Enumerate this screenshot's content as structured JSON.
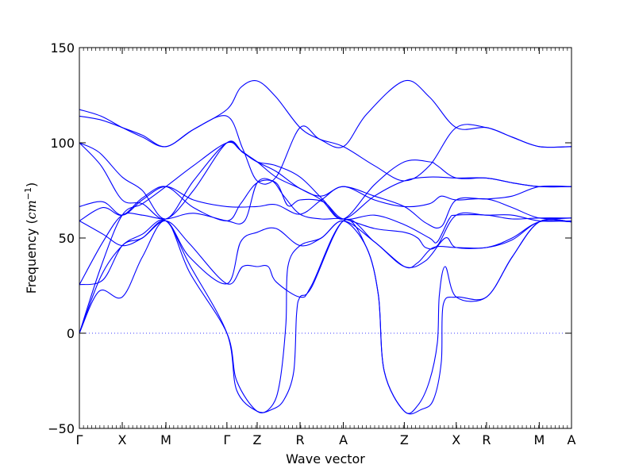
{
  "chart_data": {
    "type": "line",
    "title": "",
    "xlabel": "Wave vector",
    "ylabel": {
      "prefix": "Frequency (",
      "unit": "cm",
      "exp": "−1",
      "suffix": ")"
    },
    "ylim": [
      -50,
      150
    ],
    "yticks": [
      -50,
      0,
      50,
      100,
      150
    ],
    "ytick_labels": [
      "−50",
      "0",
      "50",
      "100",
      "150"
    ],
    "xlim": [
      0,
      12.51
    ],
    "xticks": [
      {
        "label": "Γ",
        "pos": 0
      },
      {
        "label": "X",
        "pos": 1.09
      },
      {
        "label": "M",
        "pos": 2.2
      },
      {
        "label": "Γ",
        "pos": 3.75
      },
      {
        "label": "Z",
        "pos": 4.52
      },
      {
        "label": "R",
        "pos": 5.61
      },
      {
        "label": "A",
        "pos": 6.71
      },
      {
        "label": "Z",
        "pos": 8.26
      },
      {
        "label": "X",
        "pos": 9.58
      },
      {
        "label": "R",
        "pos": 10.35
      },
      {
        "label": "M",
        "pos": 11.69
      },
      {
        "label": "A",
        "pos": 12.51
      }
    ],
    "zero_line": true,
    "line_color": "#0000ff",
    "grid": false,
    "series": [
      {
        "values": [
          [
            0,
            117.5
          ],
          [
            0.55,
            114
          ],
          [
            1.09,
            108
          ],
          [
            1.6,
            103
          ],
          [
            2.2,
            98
          ],
          [
            2.9,
            107
          ],
          [
            3.75,
            117.5
          ],
          [
            4.1,
            129
          ],
          [
            4.52,
            132.5
          ],
          [
            5.0,
            124
          ],
          [
            5.61,
            108
          ],
          [
            6.1,
            102
          ],
          [
            6.71,
            98
          ],
          [
            7.3,
            115
          ],
          [
            8.26,
            132.5
          ],
          [
            8.9,
            124
          ],
          [
            9.58,
            108
          ],
          [
            10.35,
            108
          ],
          [
            11.0,
            103
          ],
          [
            11.69,
            98
          ],
          [
            12.51,
            98
          ]
        ]
      },
      {
        "values": [
          [
            0,
            114
          ],
          [
            0.55,
            112
          ],
          [
            1.09,
            108
          ],
          [
            1.6,
            104
          ],
          [
            2.2,
            98
          ],
          [
            2.9,
            107
          ],
          [
            3.75,
            114
          ],
          [
            4.15,
            97
          ],
          [
            4.52,
            80
          ],
          [
            5.0,
            82
          ],
          [
            5.61,
            108
          ],
          [
            6.1,
            102
          ],
          [
            6.71,
            98
          ],
          [
            7.5,
            88
          ],
          [
            8.26,
            80
          ],
          [
            8.9,
            88
          ],
          [
            9.58,
            108
          ],
          [
            10.35,
            108
          ],
          [
            11.0,
            103
          ],
          [
            11.69,
            98
          ],
          [
            12.51,
            98
          ]
        ]
      },
      {
        "values": [
          [
            0,
            100
          ],
          [
            0.5,
            95
          ],
          [
            1.09,
            82
          ],
          [
            1.6,
            75
          ],
          [
            2.2,
            60
          ],
          [
            2.9,
            80
          ],
          [
            3.75,
            100
          ],
          [
            4.15,
            95
          ],
          [
            4.52,
            90
          ],
          [
            5.0,
            88
          ],
          [
            5.61,
            82
          ],
          [
            6.2,
            70
          ],
          [
            6.71,
            60
          ],
          [
            7.5,
            72
          ],
          [
            8.26,
            80
          ],
          [
            8.9,
            82
          ],
          [
            9.58,
            81.5
          ],
          [
            10.35,
            81.5
          ],
          [
            11.0,
            79
          ],
          [
            11.69,
            77
          ],
          [
            12.51,
            77
          ]
        ]
      },
      {
        "values": [
          [
            0,
            100
          ],
          [
            0.55,
            88
          ],
          [
            1.09,
            70
          ],
          [
            1.6,
            68
          ],
          [
            2.2,
            60
          ],
          [
            2.9,
            75
          ],
          [
            3.75,
            100
          ],
          [
            4.15,
            95
          ],
          [
            4.52,
            90
          ],
          [
            5.0,
            82
          ],
          [
            5.61,
            76
          ],
          [
            6.15,
            70
          ],
          [
            6.71,
            60
          ],
          [
            7.5,
            78
          ],
          [
            8.26,
            90
          ],
          [
            8.9,
            90
          ],
          [
            9.1,
            88
          ],
          [
            9.58,
            81.5
          ],
          [
            10.35,
            81.5
          ],
          [
            11.0,
            79
          ],
          [
            11.69,
            77
          ],
          [
            12.51,
            77
          ]
        ]
      },
      {
        "values": [
          [
            0,
            66.5
          ],
          [
            0.6,
            69
          ],
          [
            1.09,
            62
          ],
          [
            1.6,
            70
          ],
          [
            2.2,
            77
          ],
          [
            2.9,
            70
          ],
          [
            3.75,
            66.5
          ],
          [
            4.5,
            66.5
          ],
          [
            5.0,
            67.5
          ],
          [
            5.61,
            62.5
          ],
          [
            6.15,
            70
          ],
          [
            6.71,
            77
          ],
          [
            7.5,
            70
          ],
          [
            8.26,
            66.5
          ],
          [
            8.9,
            68
          ],
          [
            9.2,
            72
          ],
          [
            9.58,
            70
          ],
          [
            10.35,
            70.5
          ],
          [
            11.0,
            66
          ],
          [
            11.69,
            60.5
          ],
          [
            12.51,
            60.5
          ]
        ]
      },
      {
        "values": [
          [
            0,
            59
          ],
          [
            0.6,
            66
          ],
          [
            1.09,
            62
          ],
          [
            1.6,
            71
          ],
          [
            2.2,
            77
          ],
          [
            2.9,
            66
          ],
          [
            3.75,
            59
          ],
          [
            4.1,
            68
          ],
          [
            4.52,
            79
          ],
          [
            5.0,
            79
          ],
          [
            5.3,
            67
          ],
          [
            5.61,
            70
          ],
          [
            6.2,
            69
          ],
          [
            6.71,
            60
          ],
          [
            7.5,
            62
          ],
          [
            8.26,
            57
          ],
          [
            8.9,
            50
          ],
          [
            9.1,
            48
          ],
          [
            9.4,
            60
          ],
          [
            9.58,
            62
          ],
          [
            10.35,
            62
          ],
          [
            11.0,
            60
          ],
          [
            11.69,
            60.5
          ],
          [
            12.51,
            60.5
          ]
        ]
      },
      {
        "values": [
          [
            0,
            25.5
          ],
          [
            0.6,
            48
          ],
          [
            1.09,
            62
          ],
          [
            1.6,
            62
          ],
          [
            2.2,
            60
          ],
          [
            2.9,
            63
          ],
          [
            3.75,
            59
          ],
          [
            4.2,
            59
          ],
          [
            4.52,
            79
          ],
          [
            4.9,
            80
          ],
          [
            5.2,
            72
          ],
          [
            5.61,
            62.5
          ],
          [
            6.15,
            60
          ],
          [
            6.71,
            60
          ],
          [
            7.5,
            55
          ],
          [
            8.26,
            53
          ],
          [
            8.6,
            50
          ],
          [
            8.8,
            45
          ],
          [
            9.1,
            46
          ],
          [
            9.58,
            62
          ],
          [
            10.35,
            62
          ],
          [
            11.0,
            62
          ],
          [
            11.69,
            59
          ],
          [
            12.51,
            59
          ]
        ]
      },
      {
        "values": [
          [
            0,
            59
          ],
          [
            0.6,
            52
          ],
          [
            1.09,
            46
          ],
          [
            1.6,
            50
          ],
          [
            2.2,
            59
          ],
          [
            2.8,
            47
          ],
          [
            3.75,
            26
          ],
          [
            4.15,
            35
          ],
          [
            4.52,
            35
          ],
          [
            4.8,
            35
          ],
          [
            5.0,
            27
          ],
          [
            5.61,
            19
          ],
          [
            5.9,
            25
          ],
          [
            6.71,
            59
          ],
          [
            7.5,
            48
          ],
          [
            8.26,
            35
          ],
          [
            8.8,
            38
          ],
          [
            9.3,
            50
          ],
          [
            9.58,
            45
          ],
          [
            10.35,
            45
          ],
          [
            11.0,
            49
          ],
          [
            11.69,
            58.5
          ],
          [
            12.51,
            58.5
          ]
        ]
      },
      {
        "values": [
          [
            0,
            25.5
          ],
          [
            0.6,
            28
          ],
          [
            1.09,
            46
          ],
          [
            1.6,
            50
          ],
          [
            2.2,
            59
          ],
          [
            2.8,
            40
          ],
          [
            3.75,
            26
          ],
          [
            4.1,
            48
          ],
          [
            4.52,
            53
          ],
          [
            5.0,
            55
          ],
          [
            5.61,
            46
          ],
          [
            6.15,
            50
          ],
          [
            6.71,
            59
          ],
          [
            7.5,
            48
          ],
          [
            8.26,
            35
          ],
          [
            8.6,
            37
          ],
          [
            9.0,
            45
          ],
          [
            9.58,
            45
          ],
          [
            10.35,
            45
          ],
          [
            11.0,
            50
          ],
          [
            11.69,
            58.5
          ],
          [
            12.51,
            58.5
          ]
        ]
      },
      {
        "values": [
          [
            0,
            0
          ],
          [
            0.5,
            22
          ],
          [
            1.09,
            19
          ],
          [
            1.6,
            40
          ],
          [
            2.2,
            59
          ],
          [
            2.8,
            32
          ],
          [
            3.75,
            0
          ],
          [
            4.0,
            -25
          ],
          [
            4.52,
            -41
          ],
          [
            4.9,
            -38
          ],
          [
            5.1,
            -25
          ],
          [
            5.25,
            5
          ],
          [
            5.3,
            35
          ],
          [
            5.61,
            46
          ],
          [
            6.15,
            50
          ],
          [
            6.71,
            59
          ],
          [
            7.3,
            45
          ],
          [
            7.6,
            20
          ],
          [
            7.75,
            -20
          ],
          [
            8.26,
            -41
          ],
          [
            8.6,
            -38
          ],
          [
            8.9,
            -25
          ],
          [
            9.1,
            -5
          ],
          [
            9.15,
            20
          ],
          [
            9.3,
            35
          ],
          [
            9.58,
            19
          ],
          [
            10.35,
            19
          ],
          [
            11.0,
            40
          ],
          [
            11.69,
            58.5
          ],
          [
            12.51,
            58.5
          ]
        ]
      },
      {
        "values": [
          [
            0,
            0
          ],
          [
            0.55,
            30
          ],
          [
            1.09,
            46
          ],
          [
            1.6,
            52
          ],
          [
            2.2,
            59
          ],
          [
            2.8,
            36
          ],
          [
            3.75,
            0
          ],
          [
            4.0,
            -30
          ],
          [
            4.52,
            -41
          ],
          [
            4.9,
            -40
          ],
          [
            5.2,
            -35
          ],
          [
            5.45,
            -20
          ],
          [
            5.52,
            10
          ],
          [
            5.61,
            19
          ],
          [
            5.9,
            24
          ],
          [
            6.71,
            59
          ],
          [
            7.3,
            45
          ],
          [
            7.6,
            20
          ],
          [
            7.75,
            -20
          ],
          [
            8.26,
            -41
          ],
          [
            8.7,
            -40
          ],
          [
            9.0,
            -35
          ],
          [
            9.2,
            -15
          ],
          [
            9.25,
            15
          ],
          [
            9.58,
            19
          ],
          [
            10.35,
            19
          ],
          [
            11.0,
            40
          ],
          [
            11.69,
            58.5
          ],
          [
            12.51,
            58.5
          ]
        ]
      },
      {
        "values": [
          [
            0,
            0
          ],
          [
            0.55,
            35
          ],
          [
            1.09,
            62
          ],
          [
            1.6,
            68
          ],
          [
            2.2,
            77
          ],
          [
            2.9,
            88
          ],
          [
            3.75,
            100
          ],
          [
            4.1,
            96
          ],
          [
            4.52,
            90
          ],
          [
            5.0,
            85
          ],
          [
            5.61,
            76
          ],
          [
            6.15,
            72
          ],
          [
            6.71,
            77
          ],
          [
            7.5,
            72
          ],
          [
            8.26,
            66.5
          ],
          [
            8.8,
            58
          ],
          [
            9.2,
            56
          ],
          [
            9.58,
            70
          ],
          [
            10.35,
            70.5
          ],
          [
            11.0,
            72
          ],
          [
            11.69,
            77
          ],
          [
            12.51,
            77
          ]
        ]
      }
    ]
  }
}
